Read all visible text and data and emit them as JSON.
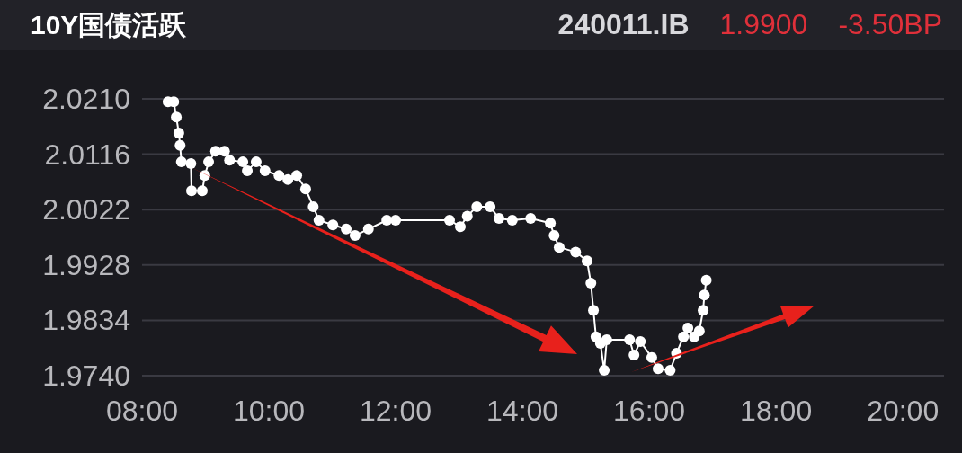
{
  "chart_data": {
    "type": "line",
    "title": "10Y国债活跃",
    "annotations": [
      "240011.IB",
      "1.9900",
      "-3.50BP"
    ],
    "x": [
      8.41,
      8.5,
      8.54,
      8.58,
      8.6,
      8.62,
      8.77,
      8.78,
      8.95,
      8.99,
      9.05,
      9.16,
      9.3,
      9.38,
      9.59,
      9.66,
      9.8,
      9.94,
      10.16,
      10.3,
      10.44,
      10.58,
      10.7,
      10.79,
      11.01,
      11.22,
      11.36,
      11.57,
      11.86,
      12.0,
      12.85,
      13.02,
      13.13,
      13.28,
      13.49,
      13.63,
      13.84,
      14.13,
      14.44,
      14.5,
      14.58,
      14.84,
      15.02,
      15.08,
      15.12,
      15.16,
      15.23,
      15.29,
      15.33,
      15.69,
      15.76,
      15.86,
      16.04,
      16.14,
      16.33,
      16.43,
      16.54,
      16.61,
      16.71,
      16.79,
      16.85,
      16.87,
      16.9
    ],
    "series": [
      {
        "color": "#ffffff",
        "values": [
          2.0205,
          2.0205,
          2.0179,
          2.0152,
          2.0131,
          2.0103,
          2.01,
          2.0054,
          2.0054,
          2.008,
          2.0103,
          2.0121,
          2.0121,
          2.0106,
          2.0103,
          2.0088,
          2.0103,
          2.0088,
          2.008,
          2.0073,
          2.008,
          2.0057,
          2.0027,
          2.0004,
          1.9996,
          1.9989,
          1.9978,
          1.9989,
          2.0004,
          2.0004,
          2.0004,
          1.9993,
          2.0011,
          2.0027,
          2.0027,
          2.0007,
          2.0004,
          2.0007,
          1.9999,
          1.9978,
          1.9958,
          1.995,
          1.9935,
          1.9897,
          1.9851,
          1.9806,
          1.9795,
          1.9749,
          1.9801,
          1.9801,
          1.9775,
          1.9798,
          1.9771,
          1.9752,
          1.9749,
          1.9778,
          1.9806,
          1.9821,
          1.9806,
          1.9816,
          1.9851,
          1.9877,
          1.9902
        ]
      }
    ],
    "xlim": [
      8,
      20.65
    ],
    "xticks": [
      {
        "value": 8,
        "label": "08:00"
      },
      {
        "value": 10,
        "label": "10:00"
      },
      {
        "value": 12,
        "label": "12:00"
      },
      {
        "value": 14,
        "label": "14:00"
      },
      {
        "value": 16,
        "label": "16:00"
      },
      {
        "value": 18,
        "label": "18:00"
      },
      {
        "value": 20,
        "label": "20:00"
      }
    ],
    "ylim": [
      1.974,
      2.021
    ],
    "yticks": [
      {
        "value": 2.021,
        "label": "2.0210"
      },
      {
        "value": 2.0116,
        "label": "2.0116"
      },
      {
        "value": 2.0022,
        "label": "2.0022"
      },
      {
        "value": 1.9928,
        "label": "1.9928"
      },
      {
        "value": 1.9834,
        "label": "1.9834"
      },
      {
        "value": 1.974,
        "label": "1.9740"
      }
    ],
    "grid": "y",
    "marker": "circle",
    "line_style": "solid"
  }
}
